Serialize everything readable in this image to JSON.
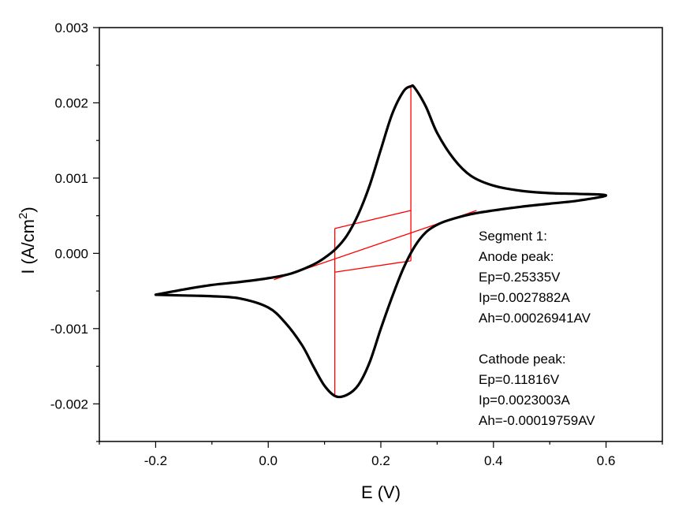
{
  "chart_data": {
    "type": "line",
    "xlabel": "E (V)",
    "ylabel": "I (A/cm",
    "ylabel_sup": "2",
    "ylabel_close": ")",
    "xlim": [
      -0.3,
      0.7
    ],
    "ylim": [
      -0.0025,
      0.003
    ],
    "xticks": [
      -0.2,
      0.0,
      0.2,
      0.4,
      0.6
    ],
    "xtick_labels": [
      "-0.2",
      "0.0",
      "0.2",
      "0.4",
      "0.6"
    ],
    "yticks": [
      -0.002,
      -0.001,
      0.0,
      0.001,
      0.002,
      0.003
    ],
    "ytick_labels": [
      "-0.002",
      "-0.001",
      "0.000",
      "0.001",
      "0.002",
      "0.003"
    ],
    "grid": false,
    "series": [
      {
        "color": "#000000",
        "x": [
          -0.2,
          -0.15,
          -0.1,
          -0.05,
          0.0,
          0.04,
          0.08,
          0.1,
          0.12,
          0.14,
          0.16,
          0.18,
          0.2,
          0.22,
          0.24,
          0.2534,
          0.26,
          0.28,
          0.3,
          0.33,
          0.36,
          0.4,
          0.45,
          0.5,
          0.55,
          0.6,
          0.55,
          0.5,
          0.45,
          0.4,
          0.36,
          0.32,
          0.3,
          0.28,
          0.26,
          0.24,
          0.22,
          0.2,
          0.18,
          0.16,
          0.14,
          0.12,
          0.1,
          0.08,
          0.06,
          0.03,
          0.0,
          -0.05,
          -0.1,
          -0.15,
          -0.2
        ],
        "y": [
          -0.00055,
          -0.00048,
          -0.00042,
          -0.00038,
          -0.00033,
          -0.00027,
          -0.00015,
          -6e-05,
          6e-05,
          0.00024,
          0.00052,
          0.0009,
          0.00138,
          0.00185,
          0.00215,
          0.00222,
          0.0022,
          0.00195,
          0.0016,
          0.00125,
          0.00103,
          0.0009,
          0.00083,
          0.0008,
          0.00079,
          0.00077,
          0.0007,
          0.00066,
          0.00062,
          0.00057,
          0.00052,
          0.00044,
          0.00038,
          0.00028,
          9e-05,
          -0.0002,
          -0.00058,
          -0.001,
          -0.00145,
          -0.00175,
          -0.00188,
          -0.0019,
          -0.00176,
          -0.0015,
          -0.00122,
          -0.00092,
          -0.00072,
          -0.0006,
          -0.00057,
          -0.00056,
          -0.00055
        ]
      }
    ],
    "annotation_lines": [
      {
        "color": "#ff0000",
        "x": [
          0.01,
          0.37
        ],
        "y": [
          -0.00035,
          0.00057
        ]
      },
      {
        "color": "#ff0000",
        "x": [
          0.11816,
          0.11816
        ],
        "y": [
          -0.0019,
          0.00033
        ]
      },
      {
        "color": "#ff0000",
        "x": [
          0.11816,
          0.25335
        ],
        "y": [
          0.00033,
          0.00057
        ]
      },
      {
        "color": "#ff0000",
        "x": [
          0.25335,
          0.25335
        ],
        "y": [
          0.00222,
          -0.0001
        ]
      },
      {
        "color": "#ff0000",
        "x": [
          0.11816,
          0.25335
        ],
        "y": [
          -0.00025,
          -0.0001
        ]
      }
    ],
    "annotations": [
      "Segment 1:",
      "Anode peak:",
      "Ep=0.25335V",
      "Ip=0.0027882A",
      "Ah=0.00026941AV",
      "",
      "Cathode peak:",
      "Ep=0.11816V",
      "Ip=0.0023003A",
      "Ah=-0.00019759AV"
    ]
  }
}
